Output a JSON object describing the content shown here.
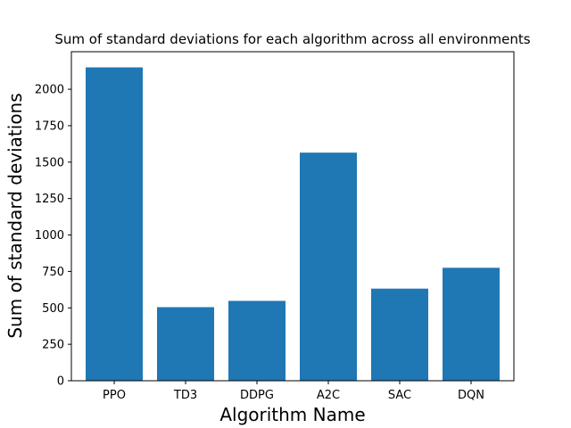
{
  "chart_data": {
    "type": "bar",
    "title": "Sum of standard deviations for each algorithm across all environments",
    "xlabel": "Algorithm Name",
    "ylabel": "Sum of standard deviations",
    "categories": [
      "PPO",
      "TD3",
      "DDPG",
      "A2C",
      "SAC",
      "DQN"
    ],
    "values": [
      2150,
      505,
      548,
      1565,
      632,
      775
    ],
    "ylim": [
      0,
      2257.5
    ],
    "yticks": [
      0,
      250,
      500,
      750,
      1000,
      1250,
      1500,
      1750,
      2000
    ],
    "bar_color": "#1f77b4",
    "grid": false,
    "legend": "none"
  }
}
